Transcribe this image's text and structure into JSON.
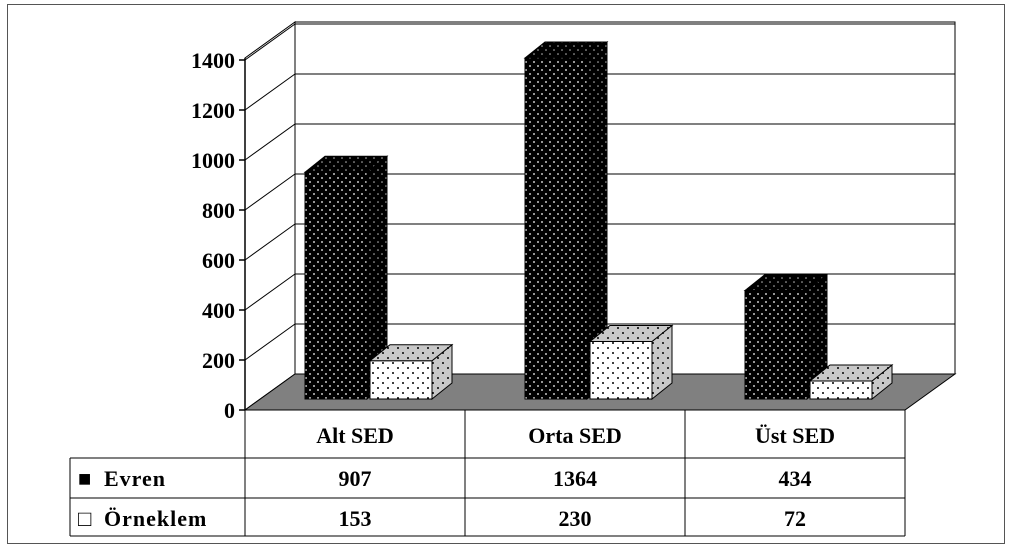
{
  "chart_data": {
    "type": "bar",
    "categories": [
      "Alt SED",
      "Orta SED",
      "Üst SED"
    ],
    "series": [
      {
        "name": "Evren",
        "values": [
          907,
          1364,
          434
        ],
        "color": "#000000",
        "pattern": "dots-on-black"
      },
      {
        "name": "Örneklem",
        "values": [
          153,
          230,
          72
        ],
        "color": "#ffffff",
        "pattern": "dots-on-white"
      }
    ],
    "ylim": [
      0,
      1400
    ],
    "yticks": [
      "0",
      "200",
      "400",
      "600",
      "800",
      "1000",
      "1200",
      "1400"
    ],
    "grid": true,
    "three_d": true,
    "floor_color": "#808080",
    "data_table": {
      "rows": [
        {
          "legend_symbol": "■",
          "label": "Evren",
          "values": [
            "907",
            "1364",
            "434"
          ]
        },
        {
          "legend_symbol": "□",
          "label": "Örneklem",
          "values": [
            "153",
            "230",
            "72"
          ]
        }
      ]
    }
  }
}
